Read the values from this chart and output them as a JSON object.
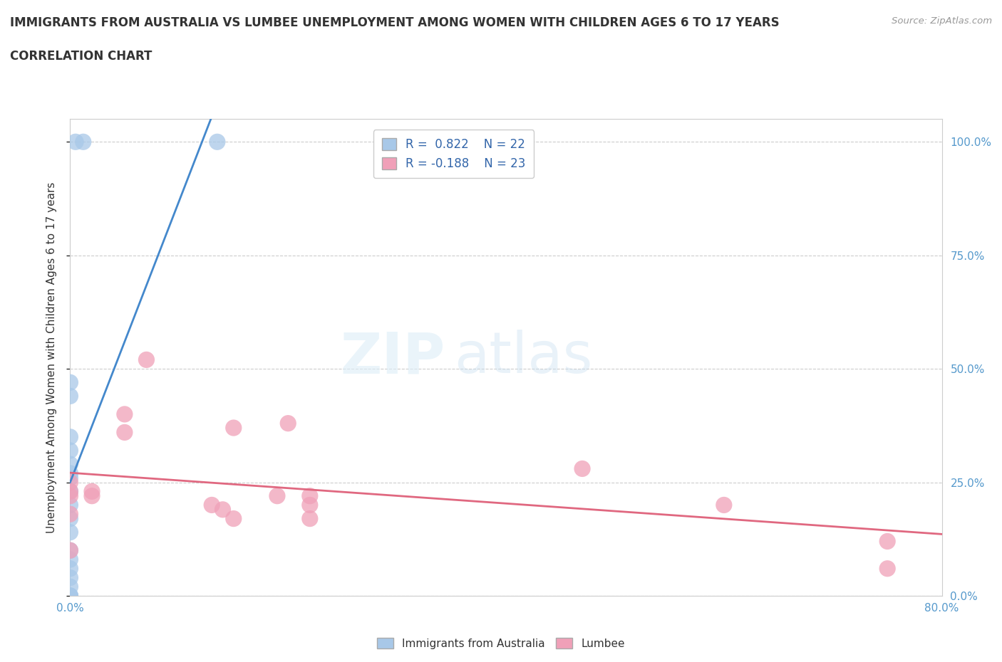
{
  "title_line1": "IMMIGRANTS FROM AUSTRALIA VS LUMBEE UNEMPLOYMENT AMONG WOMEN WITH CHILDREN AGES 6 TO 17 YEARS",
  "title_line2": "CORRELATION CHART",
  "source_text": "Source: ZipAtlas.com",
  "ylabel": "Unemployment Among Women with Children Ages 6 to 17 years",
  "xlim": [
    0.0,
    0.8
  ],
  "ylim": [
    0.0,
    1.05
  ],
  "ytick_labels": [
    "0.0%",
    "25.0%",
    "50.0%",
    "75.0%",
    "100.0%"
  ],
  "ytick_positions": [
    0.0,
    0.25,
    0.5,
    0.75,
    1.0
  ],
  "grid_color": "#cccccc",
  "background_color": "#ffffff",
  "watermark_zip": "ZIP",
  "watermark_atlas": "atlas",
  "blue_color": "#a8c8e8",
  "pink_color": "#f0a0b8",
  "blue_line_color": "#4488cc",
  "pink_line_color": "#e06880",
  "australia_x": [
    0.0,
    0.0,
    0.0,
    0.0,
    0.0,
    0.0,
    0.0,
    0.0,
    0.0,
    0.0,
    0.0,
    0.0,
    0.0,
    0.0,
    0.0,
    0.0,
    0.0,
    0.0,
    0.0,
    0.005,
    0.012,
    0.135
  ],
  "australia_y": [
    0.0,
    0.0,
    0.0,
    0.02,
    0.04,
    0.06,
    0.08,
    0.1,
    0.14,
    0.17,
    0.2,
    0.23,
    0.26,
    0.29,
    0.32,
    0.35,
    0.44,
    0.47,
    0.27,
    1.0,
    1.0,
    1.0
  ],
  "lumbee_x": [
    0.0,
    0.0,
    0.0,
    0.0,
    0.0,
    0.02,
    0.02,
    0.05,
    0.05,
    0.07,
    0.13,
    0.14,
    0.15,
    0.15,
    0.19,
    0.2,
    0.22,
    0.22,
    0.22,
    0.47,
    0.6,
    0.75,
    0.75
  ],
  "lumbee_y": [
    0.1,
    0.18,
    0.22,
    0.23,
    0.25,
    0.22,
    0.23,
    0.36,
    0.4,
    0.52,
    0.2,
    0.19,
    0.17,
    0.37,
    0.22,
    0.38,
    0.17,
    0.2,
    0.22,
    0.28,
    0.2,
    0.12,
    0.06
  ]
}
